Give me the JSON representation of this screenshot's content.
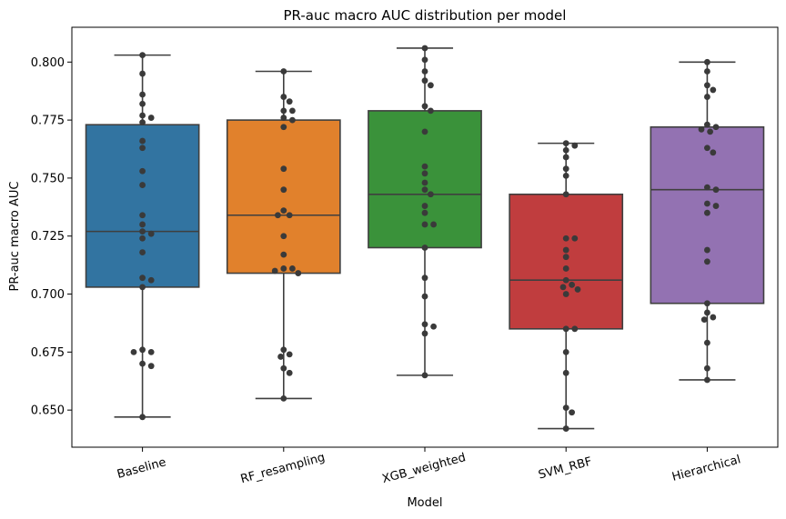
{
  "chart_data": {
    "type": "box",
    "title": "PR-auc macro AUC distribution per model",
    "xlabel": "Model",
    "ylabel": "PR-auc macro AUC",
    "ylim": [
      0.634,
      0.815
    ],
    "yticks": [
      "0.650",
      "0.675",
      "0.700",
      "0.725",
      "0.750",
      "0.775",
      "0.800"
    ],
    "ytick_values": [
      0.65,
      0.675,
      0.7,
      0.725,
      0.75,
      0.775,
      0.8
    ],
    "categories": [
      "Baseline",
      "RF_resampling",
      "XGB_weighted",
      "SVM_RBF",
      "Hierarchical"
    ],
    "colors": [
      "#3274a1",
      "#e1812c",
      "#3a923a",
      "#c03d3e",
      "#9372b2"
    ],
    "point_color": "#3a3a3a",
    "line_color": "#3f3f3f",
    "grid": false,
    "boxes": [
      {
        "name": "Baseline",
        "whisker_low": 0.647,
        "q1": 0.703,
        "median": 0.727,
        "q3": 0.773,
        "whisker_high": 0.803,
        "points": [
          0.803,
          0.795,
          0.786,
          0.782,
          0.777,
          0.776,
          0.774,
          0.766,
          0.763,
          0.753,
          0.747,
          0.734,
          0.73,
          0.727,
          0.726,
          0.724,
          0.718,
          0.707,
          0.706,
          0.703,
          0.676,
          0.675,
          0.675,
          0.67,
          0.669,
          0.647
        ]
      },
      {
        "name": "RF_resampling",
        "whisker_low": 0.655,
        "q1": 0.709,
        "median": 0.734,
        "q3": 0.775,
        "whisker_high": 0.796,
        "points": [
          0.796,
          0.785,
          0.783,
          0.779,
          0.779,
          0.776,
          0.775,
          0.772,
          0.754,
          0.745,
          0.736,
          0.734,
          0.734,
          0.725,
          0.717,
          0.711,
          0.711,
          0.71,
          0.709,
          0.676,
          0.674,
          0.673,
          0.668,
          0.666,
          0.655
        ]
      },
      {
        "name": "XGB_weighted",
        "whisker_low": 0.665,
        "q1": 0.72,
        "median": 0.743,
        "q3": 0.779,
        "whisker_high": 0.806,
        "points": [
          0.806,
          0.801,
          0.796,
          0.792,
          0.79,
          0.781,
          0.779,
          0.77,
          0.755,
          0.752,
          0.748,
          0.745,
          0.743,
          0.738,
          0.735,
          0.73,
          0.73,
          0.72,
          0.707,
          0.699,
          0.687,
          0.686,
          0.683,
          0.665
        ]
      },
      {
        "name": "SVM_RBF",
        "whisker_low": 0.642,
        "q1": 0.685,
        "median": 0.706,
        "q3": 0.743,
        "whisker_high": 0.765,
        "points": [
          0.765,
          0.764,
          0.762,
          0.759,
          0.754,
          0.751,
          0.743,
          0.724,
          0.724,
          0.719,
          0.716,
          0.711,
          0.706,
          0.704,
          0.703,
          0.702,
          0.7,
          0.685,
          0.685,
          0.675,
          0.666,
          0.651,
          0.649,
          0.642
        ]
      },
      {
        "name": "Hierarchical",
        "whisker_low": 0.663,
        "q1": 0.696,
        "median": 0.745,
        "q3": 0.772,
        "whisker_high": 0.8,
        "points": [
          0.8,
          0.796,
          0.79,
          0.788,
          0.785,
          0.773,
          0.772,
          0.771,
          0.77,
          0.763,
          0.761,
          0.746,
          0.745,
          0.739,
          0.738,
          0.735,
          0.719,
          0.714,
          0.696,
          0.692,
          0.69,
          0.689,
          0.679,
          0.668,
          0.663
        ]
      }
    ]
  }
}
